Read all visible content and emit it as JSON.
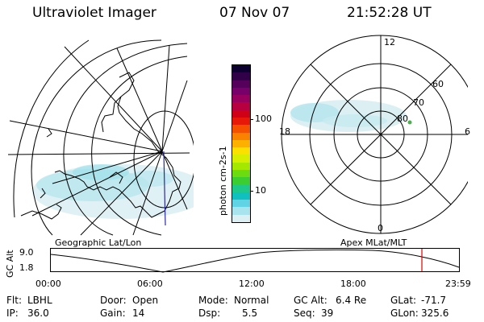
{
  "header": {
    "title": "Ultraviolet Imager",
    "date": "07 Nov 07",
    "time": "21:52:28 UT"
  },
  "colorbar": {
    "label": "photon cm-2s-1",
    "ticks": [
      "100",
      "10"
    ],
    "colors": [
      "#0b0030",
      "#300048",
      "#55005a",
      "#78006a",
      "#980060",
      "#b70040",
      "#d00018",
      "#e81808",
      "#f45000",
      "#fa8200",
      "#fdb000",
      "#fce000",
      "#d8ee00",
      "#a4e800",
      "#6cdc10",
      "#3ccd30",
      "#1ec88a",
      "#10c0c0",
      "#60d4e4",
      "#a8e4ee",
      "#dceff2"
    ]
  },
  "left_map": {
    "caption": "Geographic Lat/Lon"
  },
  "right_map": {
    "caption": "Apex MLat/MLT",
    "clock_labels": [
      "12",
      "6",
      "0",
      "18"
    ],
    "ring_labels": [
      "60",
      "70",
      "80"
    ]
  },
  "timeline": {
    "axis_label": "GC Alt",
    "y_ticks": [
      "9.0",
      "1.8"
    ],
    "x_ticks": [
      "00:00",
      "06:00",
      "12:00",
      "18:00",
      "23:59"
    ]
  },
  "info": {
    "filt_label": "Flt:",
    "filt_value": "LBHL",
    "ip_label": "IP:",
    "ip_value": "36.0",
    "door_label": "Door:",
    "door_value": "Open",
    "gain_label": "Gain:",
    "gain_value": "14",
    "mode_label": "Mode:",
    "mode_value": "Normal",
    "dsp_label": "Dsp:",
    "dsp_value": "5.5",
    "gcalt_label": "GC Alt:",
    "gcalt_value": "6.4 Re",
    "seq_label": "Seq:",
    "seq_value": "39",
    "glat_label": "GLat:",
    "glat_value": "-71.7",
    "glon_label": "GLon:",
    "glon_value": "325.6"
  },
  "colors": {
    "aurora": "#b8e6ee",
    "aurora_dark": "#7fd4e6",
    "coast": "#000000",
    "meridian": "#2a2aa0",
    "cursor": "#e00000",
    "green_dot": "#4caf50"
  }
}
